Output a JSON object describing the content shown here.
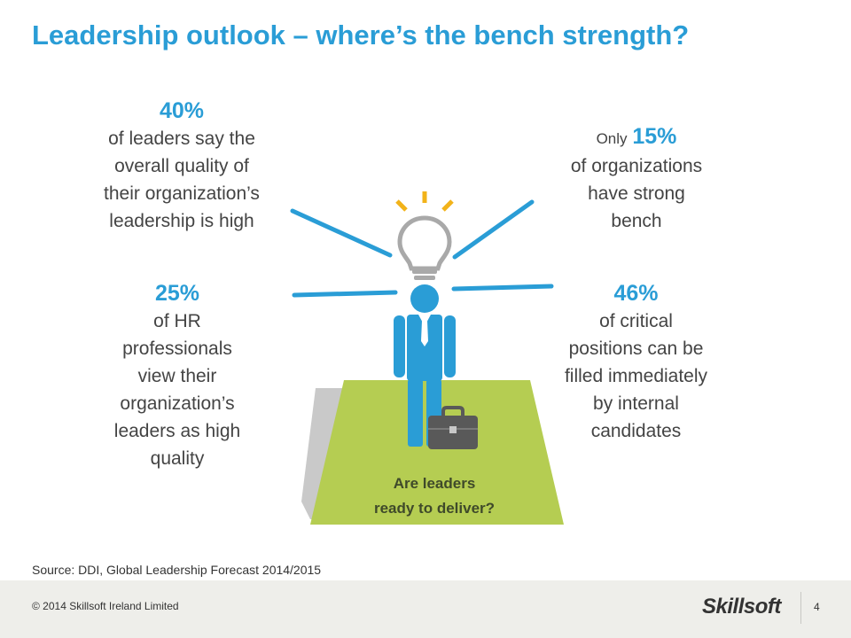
{
  "title": "Leadership outlook – where’s the bench strength?",
  "stats": {
    "top_left": {
      "value": "40%",
      "lines": [
        "of leaders say the",
        "overall quality of",
        "their organization’s",
        "leadership is high"
      ]
    },
    "top_right": {
      "prefix": "Only",
      "value": "15%",
      "lines": [
        "of organizations",
        "have strong",
        "bench"
      ]
    },
    "bottom_left": {
      "value": "25%",
      "lines": [
        "of HR",
        "professionals",
        "view their",
        "organization’s",
        "leaders as high",
        "quality"
      ]
    },
    "bottom_right": {
      "value": "46%",
      "lines": [
        "of critical",
        "positions can be",
        "filled immediately",
        "by internal",
        "candidates"
      ]
    }
  },
  "platform": {
    "line1": "Are leaders",
    "line2": "ready to deliver?"
  },
  "source": "Source: DDI, Global Leadership Forecast 2014/2015",
  "footer": {
    "copyright": "© 2014 Skillsoft Ireland Limited",
    "logo": "Skillsoft",
    "page": "4"
  },
  "colors": {
    "accent": "#2a9dd6",
    "platform": "#b5cd52",
    "footer": "#eeeeea",
    "bulb_rays": "#f2b31a"
  }
}
